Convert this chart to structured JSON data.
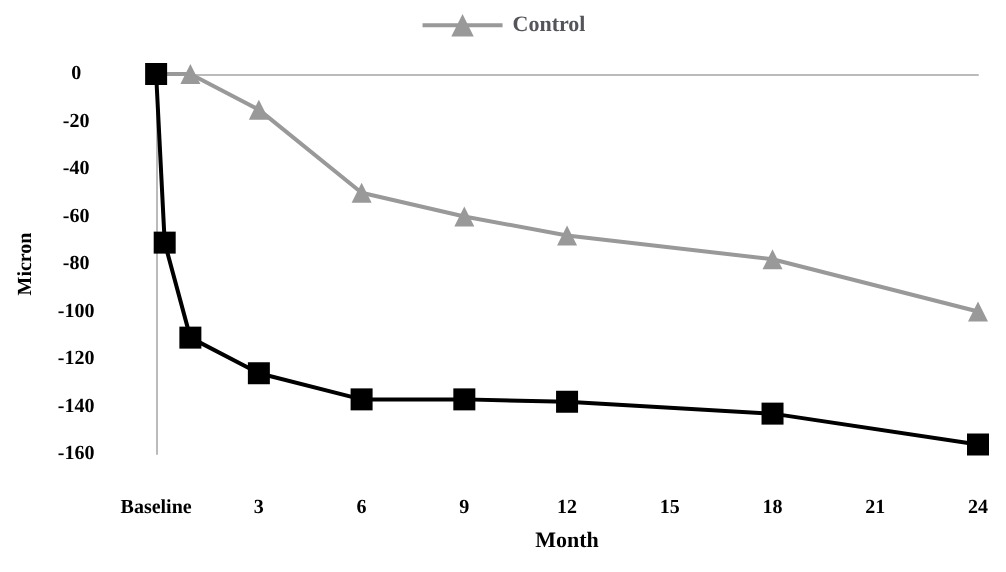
{
  "chart_data": {
    "type": "line",
    "xlabel": "Month",
    "ylabel": "Micron",
    "xlim": [
      0,
      24
    ],
    "xticks": [
      {
        "value": 0,
        "label": "Baseline"
      },
      3,
      6,
      9,
      12,
      15,
      18,
      21,
      24
    ],
    "ylim": [
      -160,
      0
    ],
    "yticks": [
      -160,
      -140,
      -120,
      -100,
      -80,
      -60,
      -40,
      -20,
      0
    ],
    "series": [
      {
        "name": "Control",
        "color": "#999999",
        "marker": "triangle",
        "x": [
          0,
          1,
          3,
          6,
          9,
          12,
          18,
          24
        ],
        "values": [
          0,
          0,
          -15,
          -50,
          -60,
          -68,
          -78,
          -100
        ]
      },
      {
        "color": "#000000",
        "marker": "square",
        "x": [
          0,
          0.25,
          1,
          3,
          6,
          9,
          12,
          18,
          24
        ],
        "values": [
          0,
          -71,
          -111,
          -126,
          -137,
          -137,
          -138,
          -143,
          -156
        ]
      }
    ],
    "legend": "top",
    "grid": false
  }
}
